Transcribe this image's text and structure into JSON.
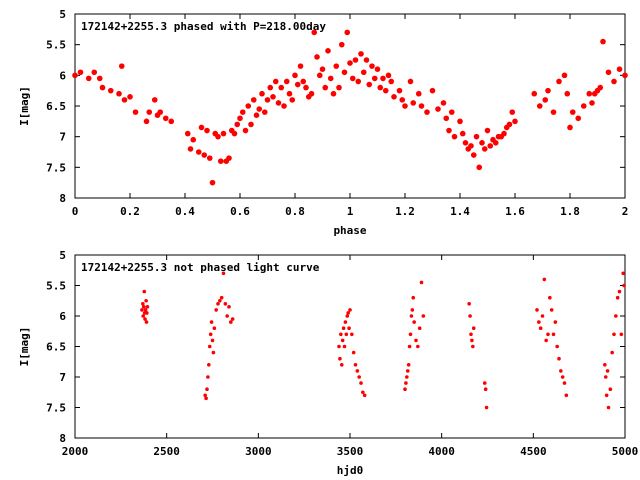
{
  "chart_data": [
    {
      "type": "scatter",
      "title": "172142+2255.3 phased with P=218.00day",
      "xlabel": "phase",
      "ylabel": "I[mag]",
      "xlim": [
        0,
        2
      ],
      "ylim": [
        5,
        8
      ],
      "y_inverted": true,
      "xticks": [
        "0",
        "0.2",
        "0.4",
        "0.6",
        "0.8",
        "1",
        "1.2",
        "1.4",
        "1.6",
        "1.8",
        "2"
      ],
      "yticks": [
        "5",
        "5.5",
        "6",
        "6.5",
        "7",
        "7.5",
        "8"
      ],
      "grid": false,
      "marker_color": "#ff0000",
      "series": [
        {
          "x": [
            0.0,
            0.02,
            0.05,
            0.07,
            0.09,
            0.1,
            0.13,
            0.16,
            0.17,
            0.18,
            0.2,
            0.22,
            0.26,
            0.27,
            0.29,
            0.3,
            0.31,
            0.33,
            0.35,
            0.41,
            0.42,
            0.43,
            0.45,
            0.46,
            0.47,
            0.48,
            0.49,
            0.5,
            0.51,
            0.52,
            0.53,
            0.54,
            0.55,
            0.56,
            0.57,
            0.58,
            0.59,
            0.6,
            0.61,
            0.62,
            0.63,
            0.64,
            0.65,
            0.66,
            0.67,
            0.68,
            0.69,
            0.7,
            0.71,
            0.72,
            0.73,
            0.74,
            0.75,
            0.76,
            0.77,
            0.78,
            0.79,
            0.8,
            0.81,
            0.82,
            0.83,
            0.84,
            0.85,
            0.86,
            0.87,
            0.88,
            0.89,
            0.9,
            0.91,
            0.92,
            0.93,
            0.94,
            0.95,
            0.96,
            0.97,
            0.98,
            0.99,
            1.0,
            1.01,
            1.02,
            1.03,
            1.04,
            1.05,
            1.06,
            1.07,
            1.08,
            1.09,
            1.1,
            1.11,
            1.12,
            1.13,
            1.14,
            1.15,
            1.16,
            1.18,
            1.19,
            1.2,
            1.22,
            1.23,
            1.25,
            1.26,
            1.28,
            1.3,
            1.32,
            1.34,
            1.35,
            1.36,
            1.37,
            1.38,
            1.4,
            1.41,
            1.42,
            1.43,
            1.44,
            1.45,
            1.46,
            1.47,
            1.48,
            1.49,
            1.5,
            1.51,
            1.52,
            1.53,
            1.54,
            1.55,
            1.56,
            1.57,
            1.58,
            1.59,
            1.6,
            1.67,
            1.69,
            1.71,
            1.72,
            1.74,
            1.76,
            1.78,
            1.79,
            1.8,
            1.81,
            1.83,
            1.85,
            1.87,
            1.88,
            1.89,
            1.9,
            1.91,
            1.92,
            1.94,
            1.96,
            1.98,
            2.0
          ],
          "y": [
            6.0,
            5.95,
            6.05,
            5.95,
            6.05,
            6.2,
            6.25,
            6.3,
            5.85,
            6.4,
            6.35,
            6.6,
            6.75,
            6.6,
            6.4,
            6.65,
            6.6,
            6.7,
            6.75,
            6.95,
            7.2,
            7.05,
            7.25,
            6.85,
            7.3,
            6.9,
            7.35,
            7.75,
            6.95,
            7.0,
            7.4,
            6.95,
            7.4,
            7.35,
            6.9,
            6.95,
            6.8,
            6.7,
            6.6,
            6.9,
            6.5,
            6.8,
            6.4,
            6.65,
            6.55,
            6.3,
            6.6,
            6.4,
            6.2,
            6.35,
            6.1,
            6.45,
            6.2,
            6.5,
            6.1,
            6.3,
            6.4,
            6.0,
            6.15,
            5.85,
            6.1,
            6.2,
            6.35,
            6.3,
            5.3,
            5.7,
            6.0,
            5.9,
            6.2,
            5.6,
            6.05,
            6.3,
            5.85,
            6.2,
            5.5,
            5.95,
            5.3,
            5.8,
            6.05,
            5.75,
            6.1,
            5.65,
            5.95,
            5.75,
            6.15,
            5.85,
            6.05,
            5.9,
            6.2,
            6.05,
            6.25,
            6.0,
            6.1,
            6.35,
            6.25,
            6.4,
            6.5,
            6.1,
            6.45,
            6.3,
            6.5,
            6.6,
            6.25,
            6.55,
            6.45,
            6.7,
            6.9,
            6.6,
            7.0,
            6.75,
            6.95,
            7.1,
            7.2,
            7.15,
            7.3,
            7.0,
            7.5,
            7.1,
            7.2,
            6.9,
            7.15,
            7.05,
            7.1,
            7.0,
            7.0,
            6.95,
            6.85,
            6.8,
            6.6,
            6.75,
            6.3,
            6.5,
            6.4,
            6.25,
            6.6,
            6.1,
            6.0,
            6.3,
            6.85,
            6.6,
            6.7,
            6.5,
            6.3,
            6.45,
            6.3,
            6.25,
            6.2,
            5.45,
            5.95,
            6.1,
            5.9,
            6.0
          ]
        }
      ]
    },
    {
      "type": "scatter",
      "title": "172142+2255.3 not phased light curve",
      "xlabel": "hjd0",
      "ylabel": "I[mag]",
      "xlim": [
        2000,
        5000
      ],
      "ylim": [
        5,
        8
      ],
      "y_inverted": true,
      "xticks": [
        "2000",
        "2500",
        "3000",
        "3500",
        "4000",
        "4500",
        "5000"
      ],
      "yticks": [
        "5",
        "5.5",
        "6",
        "6.5",
        "7",
        "7.5",
        "8"
      ],
      "grid": false,
      "marker_color": "#ff0000",
      "series": [
        {
          "x": [
            2365,
            2370,
            2372,
            2375,
            2378,
            2380,
            2382,
            2385,
            2388,
            2390,
            2392,
            2395,
            2710,
            2715,
            2720,
            2725,
            2730,
            2735,
            2740,
            2745,
            2750,
            2755,
            2760,
            2770,
            2780,
            2790,
            2800,
            2810,
            2820,
            2830,
            2840,
            2850,
            2860,
            3440,
            3445,
            3450,
            3455,
            3460,
            3465,
            3470,
            3475,
            3480,
            3485,
            3490,
            3495,
            3500,
            3510,
            3520,
            3530,
            3540,
            3550,
            3560,
            3570,
            3580,
            3800,
            3805,
            3810,
            3815,
            3820,
            3825,
            3830,
            3835,
            3840,
            3845,
            3850,
            3860,
            3870,
            3880,
            3890,
            3900,
            4150,
            4155,
            4160,
            4165,
            4170,
            4175,
            4235,
            4240,
            4245,
            4520,
            4530,
            4540,
            4550,
            4560,
            4570,
            4580,
            4590,
            4600,
            4610,
            4620,
            4630,
            4640,
            4650,
            4660,
            4670,
            4680,
            4890,
            4895,
            4900,
            4905,
            4910,
            4920,
            4930,
            4940,
            4950,
            4960,
            4970,
            4980,
            4990,
            4995
          ],
          "y": [
            5.9,
            5.8,
            6.0,
            5.85,
            5.6,
            5.95,
            6.05,
            5.9,
            5.75,
            6.1,
            5.95,
            5.85,
            7.3,
            7.35,
            7.2,
            7.0,
            6.8,
            6.5,
            6.3,
            6.1,
            6.4,
            6.6,
            6.2,
            5.9,
            5.8,
            5.75,
            5.7,
            5.3,
            5.8,
            6.0,
            5.85,
            6.1,
            6.05,
            6.5,
            6.7,
            6.3,
            6.8,
            6.4,
            6.2,
            6.5,
            6.1,
            6.3,
            6.0,
            5.95,
            6.2,
            5.9,
            6.3,
            6.6,
            6.8,
            6.9,
            7.0,
            7.1,
            7.25,
            7.3,
            7.2,
            7.1,
            7.0,
            6.9,
            6.8,
            6.5,
            6.3,
            6.0,
            5.9,
            5.7,
            6.1,
            6.4,
            6.5,
            6.2,
            5.45,
            6.0,
            5.8,
            6.0,
            6.3,
            6.4,
            6.5,
            6.2,
            7.1,
            7.2,
            7.5,
            5.9,
            6.1,
            6.2,
            6.0,
            5.4,
            6.4,
            6.3,
            5.7,
            5.9,
            6.3,
            6.1,
            6.5,
            6.7,
            6.9,
            7.0,
            7.1,
            7.3,
            6.8,
            7.0,
            7.3,
            6.9,
            7.5,
            7.2,
            6.6,
            6.3,
            6.0,
            5.7,
            5.6,
            6.3,
            5.3,
            5.5
          ]
        }
      ]
    }
  ]
}
